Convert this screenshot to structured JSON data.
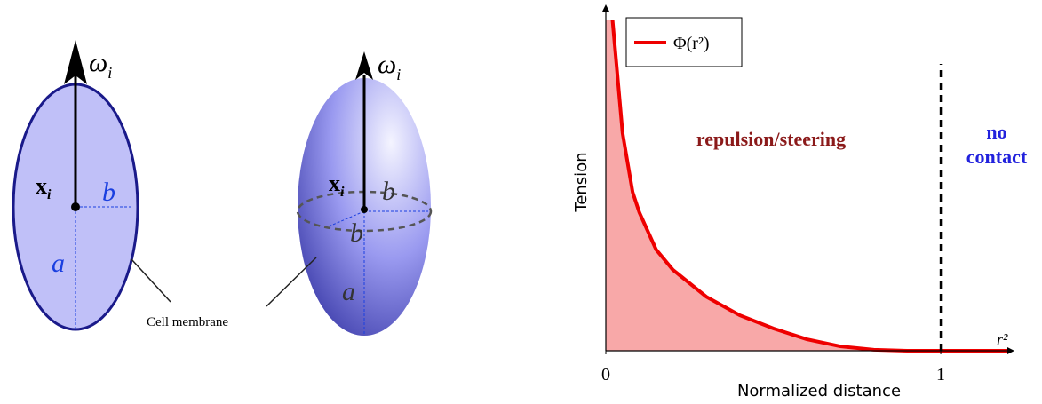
{
  "diagram": {
    "left": {
      "omega": "ω",
      "omega_sub": "i",
      "x": "x",
      "x_sub": "i",
      "b": "b",
      "a": "a"
    },
    "right": {
      "omega": "ω",
      "omega_sub": "i",
      "x": "x",
      "x_sub": "i",
      "b": "b",
      "b2": "b",
      "a": "a"
    },
    "membrane_label": "Cell membrane"
  },
  "chart_data": {
    "type": "line",
    "xlabel": "Normalized distance",
    "ylabel": "Tension",
    "x_axis_end_label": "r²",
    "x": [
      0.02,
      0.05,
      0.08,
      0.1,
      0.15,
      0.2,
      0.3,
      0.4,
      0.5,
      0.6,
      0.7,
      0.8,
      0.9,
      1.0,
      1.1,
      1.2
    ],
    "series": [
      {
        "name": "Φ(r²)",
        "color": "#ee0000",
        "values": [
          0.98,
          0.645,
          0.47,
          0.41,
          0.3,
          0.24,
          0.16,
          0.105,
          0.066,
          0.034,
          0.013,
          0.003,
          0,
          0,
          0,
          0
        ]
      }
    ],
    "fill_color": "#f8a8a8",
    "xlim": [
      0,
      1.22
    ],
    "ylim": [
      0,
      1
    ],
    "xticks": [
      0,
      1
    ],
    "vline": 1,
    "annotations": [
      "repulsion/steering",
      "no",
      "contact"
    ],
    "legend": "upper left"
  }
}
